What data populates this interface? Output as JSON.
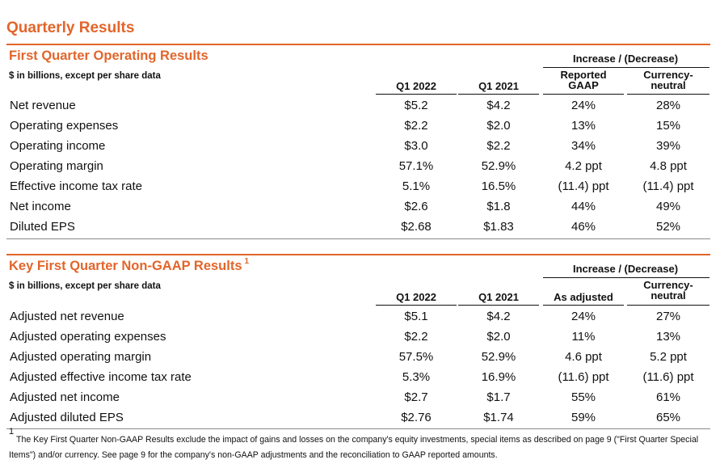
{
  "page_title": "Quarterly Results",
  "section1": {
    "title": "First Quarter Operating Results",
    "unit_note": "$ in billions, except per share data",
    "change_header": "Increase / (Decrease)",
    "col_q1_2022": "Q1 2022",
    "col_q1_2021": "Q1 2021",
    "col_change_a": [
      "Reported",
      "GAAP"
    ],
    "col_change_b": [
      "Currency-",
      "neutral"
    ],
    "rows": [
      {
        "label": "Net revenue",
        "q1_2022": "$5.2",
        "q1_2021": "$4.2",
        "a": "24%",
        "b": "28%"
      },
      {
        "label": "Operating expenses",
        "q1_2022": "$2.2",
        "q1_2021": "$2.0",
        "a": "13%",
        "b": "15%"
      },
      {
        "label": "Operating income",
        "q1_2022": "$3.0",
        "q1_2021": "$2.2",
        "a": "34%",
        "b": "39%"
      },
      {
        "label": "Operating margin",
        "q1_2022": "57.1%",
        "q1_2021": "52.9%",
        "a": "4.2 ppt",
        "b": "4.8 ppt"
      },
      {
        "label": "Effective income tax rate",
        "q1_2022": "5.1%",
        "q1_2021": "16.5%",
        "a": "(11.4) ppt",
        "b": "(11.4) ppt"
      },
      {
        "label": "Net income",
        "q1_2022": "$2.6",
        "q1_2021": "$1.8",
        "a": "44%",
        "b": "49%"
      },
      {
        "label": "Diluted EPS",
        "q1_2022": "$2.68",
        "q1_2021": "$1.83",
        "a": "46%",
        "b": "52%"
      }
    ]
  },
  "section2": {
    "title": "Key First Quarter Non-GAAP Results",
    "title_sup": "1",
    "unit_note": "$ in billions, except per share data",
    "change_header": "Increase / (Decrease)",
    "col_q1_2022": "Q1 2022",
    "col_q1_2021": "Q1 2021",
    "col_change_a": "As adjusted",
    "col_change_b": [
      "Currency-",
      "neutral"
    ],
    "rows": [
      {
        "label": "Adjusted net revenue",
        "q1_2022": "$5.1",
        "q1_2021": "$4.2",
        "a": "24%",
        "b": "27%"
      },
      {
        "label": "Adjusted operating expenses",
        "q1_2022": "$2.2",
        "q1_2021": "$2.0",
        "a": "11%",
        "b": "13%"
      },
      {
        "label": "Adjusted operating margin",
        "q1_2022": "57.5%",
        "q1_2021": "52.9%",
        "a": "4.6 ppt",
        "b": "5.2 ppt"
      },
      {
        "label": "Adjusted effective income tax rate",
        "q1_2022": "5.3%",
        "q1_2021": "16.9%",
        "a": "(11.6) ppt",
        "b": "(11.6) ppt"
      },
      {
        "label": "Adjusted net income",
        "q1_2022": "$2.7",
        "q1_2021": "$1.7",
        "a": "55%",
        "b": "61%"
      },
      {
        "label": "Adjusted diluted EPS",
        "q1_2022": "$2.76",
        "q1_2021": "$1.74",
        "a": "59%",
        "b": "65%"
      }
    ]
  },
  "footnote": {
    "marker": "1",
    "text": "The Key First Quarter Non-GAAP Results exclude the impact of gains and losses on the company's equity investments, special items as described on page 9 (\"First Quarter Special Items\") and/or currency.  See page 9 for the company's non-GAAP adjustments and the reconciliation to GAAP reported amounts."
  },
  "colors": {
    "accent": "#e2652a"
  }
}
